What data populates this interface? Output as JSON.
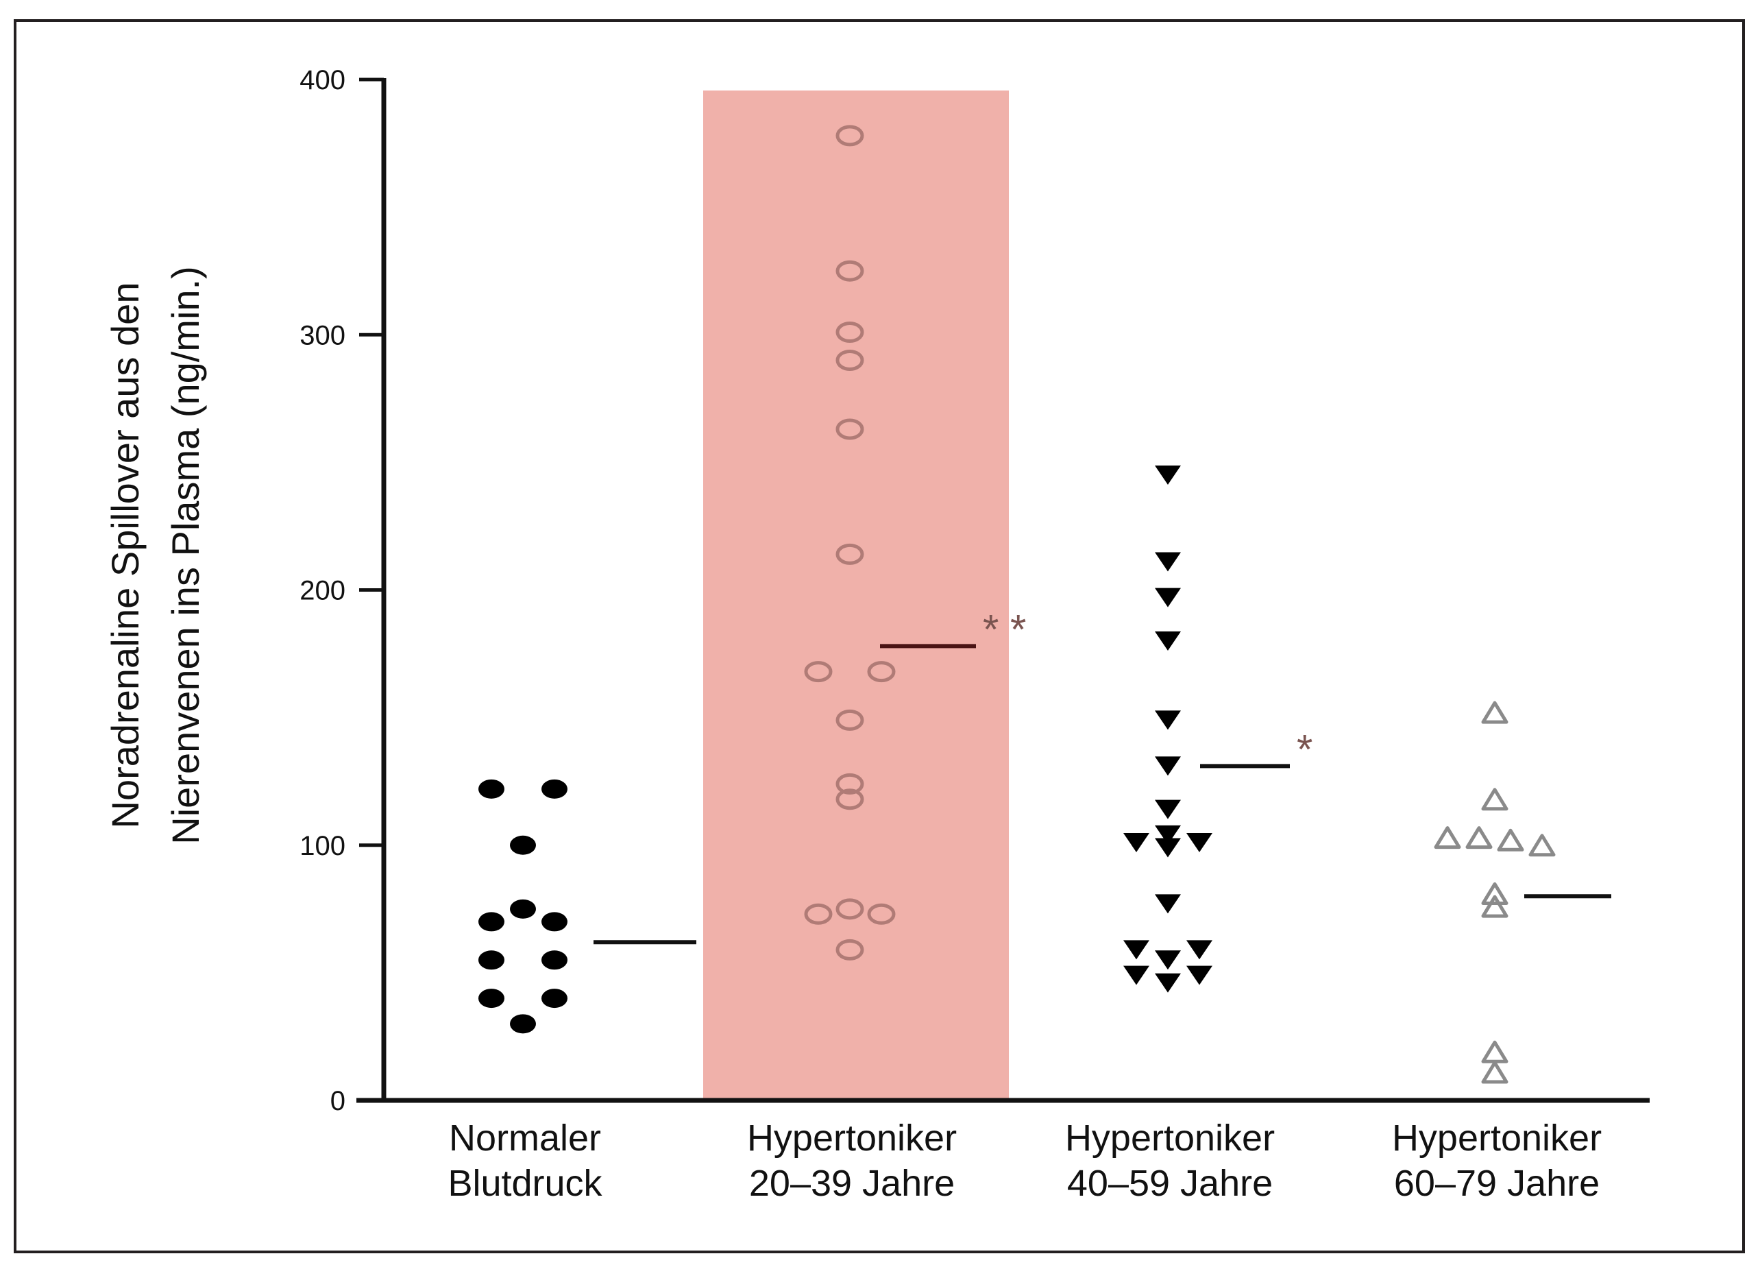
{
  "chart_data": {
    "type": "scatter",
    "title": "",
    "ylabel_lines": [
      "Noradrenaline Spillover aus den",
      "Nierenvenen ins Plasma (ng/min.)"
    ],
    "xlabel": "",
    "ylim": [
      0,
      400
    ],
    "yticks": [
      "0",
      "100",
      "200",
      "300",
      "400"
    ],
    "highlight_category_index": 1,
    "colors": {
      "highlight": "#f0b1aa",
      "axis": "#111111",
      "group1_marker": "#000000",
      "group2_marker": "#b07b76",
      "group2_mean": "#4a1414",
      "group3_marker": "#000000",
      "group4_marker": "#8a8a8a",
      "sig_star": "#7a5450"
    },
    "categories": [
      {
        "label_lines": [
          "Normaler",
          "Blutdruck"
        ],
        "marker": "filled-circle",
        "mean": 62,
        "significance": "",
        "points": [
          [
            -1,
            122
          ],
          [
            1,
            122
          ],
          [
            0,
            100
          ],
          [
            -1,
            70
          ],
          [
            0,
            75
          ],
          [
            1,
            70
          ],
          [
            -1,
            55
          ],
          [
            1,
            55
          ],
          [
            -1,
            40
          ],
          [
            1,
            40
          ],
          [
            0,
            30
          ]
        ]
      },
      {
        "label_lines": [
          "Hypertoniker",
          "20–39 Jahre"
        ],
        "marker": "open-circle",
        "mean": 178,
        "significance": "* *",
        "points": [
          [
            0,
            378
          ],
          [
            0,
            325
          ],
          [
            0,
            301
          ],
          [
            0,
            290
          ],
          [
            0,
            263
          ],
          [
            0,
            214
          ],
          [
            -1,
            168
          ],
          [
            1,
            168
          ],
          [
            0,
            149
          ],
          [
            0,
            124
          ],
          [
            0,
            118
          ],
          [
            -1,
            73
          ],
          [
            0,
            75
          ],
          [
            1,
            73
          ],
          [
            0,
            59
          ]
        ]
      },
      {
        "label_lines": [
          "Hypertoniker",
          "40–59 Jahre"
        ],
        "marker": "filled-triangle-down",
        "mean": 131,
        "significance": "*",
        "points": [
          [
            0,
            245
          ],
          [
            0,
            211
          ],
          [
            0,
            197
          ],
          [
            0,
            180
          ],
          [
            0,
            149
          ],
          [
            0,
            131
          ],
          [
            0,
            114
          ],
          [
            -1,
            101
          ],
          [
            0,
            104
          ],
          [
            0,
            99
          ],
          [
            1,
            101
          ],
          [
            0,
            77
          ],
          [
            -1,
            59
          ],
          [
            1,
            59
          ],
          [
            0,
            55
          ],
          [
            -1,
            49
          ],
          [
            1,
            49
          ],
          [
            0,
            46
          ]
        ]
      },
      {
        "label_lines": [
          "Hypertoniker",
          "60–79 Jahre"
        ],
        "marker": "open-triangle-up",
        "mean": 80,
        "significance": "",
        "points": [
          [
            0,
            152
          ],
          [
            0,
            118
          ],
          [
            -1.5,
            103
          ],
          [
            -0.5,
            103
          ],
          [
            0.5,
            102
          ],
          [
            1.5,
            100
          ],
          [
            0,
            81
          ],
          [
            0,
            76
          ],
          [
            0,
            19
          ],
          [
            0,
            11
          ]
        ]
      }
    ]
  }
}
